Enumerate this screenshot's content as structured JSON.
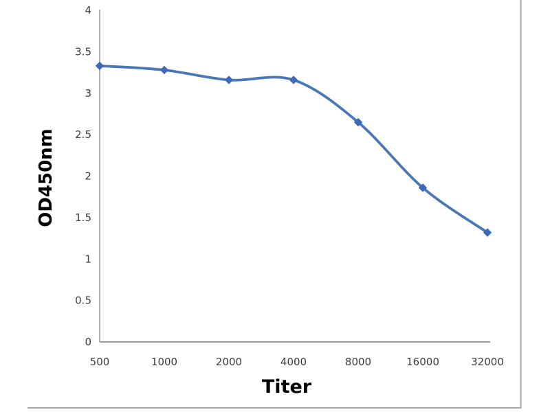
{
  "chart_data": {
    "type": "line",
    "title": "",
    "xlabel": "Titer",
    "ylabel": "OD450nm",
    "categories": [
      "500",
      "1000",
      "2000",
      "4000",
      "8000",
      "16000",
      "32000"
    ],
    "series": [
      {
        "name": "OD450nm",
        "values": [
          3.33,
          3.28,
          3.16,
          3.16,
          2.65,
          1.86,
          1.32
        ]
      }
    ],
    "ylim": [
      0,
      4
    ],
    "ytick_step": 0.5,
    "y_tick_labels": [
      "0",
      "0.5",
      "1",
      "1.5",
      "2",
      "2.5",
      "3",
      "3.5",
      "4"
    ],
    "grid": false,
    "legend_position": "none",
    "line_smooth": true,
    "marker_shape": "diamond",
    "colors": {
      "line": "#4a77b5",
      "marker": "#3f69b8",
      "axis": "#9b9b9b",
      "tick_text": "#3d3d3d",
      "axis_title_text": "#000000",
      "frame_border": "#a8a8a8",
      "background": "#ffffff"
    }
  }
}
